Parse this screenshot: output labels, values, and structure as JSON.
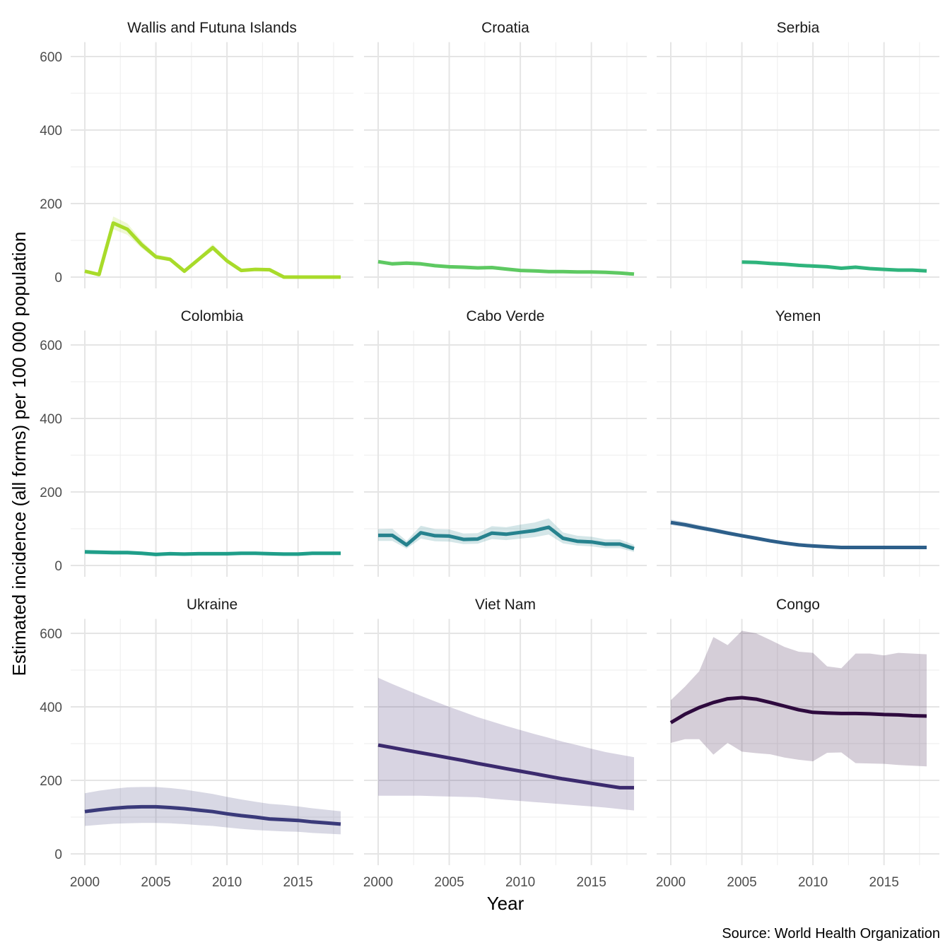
{
  "chart_data": {
    "type": "line",
    "xlabel": "Year",
    "ylabel": "Estimated incidence (all forms) per 100 000 population",
    "caption": "Source: World Health Organization",
    "xlim": [
      2000,
      2018
    ],
    "ylim": [
      0,
      620
    ],
    "x_ticks": [
      "2000",
      "2005",
      "2010",
      "2015"
    ],
    "y_ticks": [
      "0",
      "200",
      "400",
      "600"
    ],
    "grid": true,
    "facets": [
      {
        "name": "Wallis and Futuna Islands",
        "color": "#a8db2a",
        "years": [
          2000,
          2001,
          2002,
          2003,
          2004,
          2005,
          2006,
          2007,
          2008,
          2009,
          2010,
          2011,
          2012,
          2013,
          2014,
          2015,
          2016,
          2017,
          2018
        ],
        "values": [
          16,
          7,
          147,
          130,
          88,
          55,
          48,
          16,
          48,
          80,
          44,
          18,
          21,
          20,
          0,
          0,
          0,
          0,
          0
        ],
        "lo": [
          14,
          6,
          130,
          115,
          78,
          49,
          43,
          14,
          43,
          72,
          39,
          16,
          19,
          18,
          0,
          0,
          0,
          0,
          0
        ],
        "hi": [
          18,
          8,
          165,
          146,
          99,
          62,
          54,
          18,
          54,
          90,
          50,
          20,
          24,
          23,
          0,
          0,
          0,
          0,
          0
        ]
      },
      {
        "name": "Croatia",
        "color": "#5ec962",
        "years": [
          2000,
          2001,
          2002,
          2003,
          2004,
          2005,
          2006,
          2007,
          2008,
          2009,
          2010,
          2011,
          2012,
          2013,
          2014,
          2015,
          2016,
          2017,
          2018
        ],
        "values": [
          42,
          36,
          38,
          36,
          31,
          28,
          27,
          25,
          26,
          22,
          18,
          17,
          15,
          15,
          14,
          14,
          13,
          11,
          8
        ],
        "lo": [
          37,
          32,
          33,
          32,
          27,
          25,
          24,
          22,
          23,
          19,
          16,
          15,
          13,
          13,
          12,
          12,
          11,
          10,
          7
        ],
        "hi": [
          47,
          40,
          43,
          40,
          35,
          31,
          30,
          28,
          29,
          25,
          20,
          19,
          17,
          17,
          16,
          16,
          15,
          12,
          9
        ]
      },
      {
        "name": "Serbia",
        "color": "#2fb47c",
        "years": [
          2005,
          2006,
          2007,
          2008,
          2009,
          2010,
          2011,
          2012,
          2013,
          2014,
          2015,
          2016,
          2017,
          2018
        ],
        "values": [
          41,
          40,
          37,
          35,
          32,
          30,
          28,
          24,
          27,
          23,
          21,
          19,
          19,
          17
        ],
        "lo": [
          37,
          36,
          33,
          31,
          29,
          27,
          25,
          22,
          24,
          21,
          19,
          17,
          17,
          15
        ],
        "hi": [
          45,
          44,
          41,
          39,
          35,
          33,
          31,
          26,
          30,
          25,
          23,
          21,
          21,
          19
        ]
      },
      {
        "name": "Colombia",
        "color": "#1f9e89",
        "years": [
          2000,
          2001,
          2002,
          2003,
          2004,
          2005,
          2006,
          2007,
          2008,
          2009,
          2010,
          2011,
          2012,
          2013,
          2014,
          2015,
          2016,
          2017,
          2018
        ],
        "values": [
          37,
          36,
          35,
          35,
          33,
          30,
          32,
          31,
          32,
          32,
          32,
          33,
          33,
          32,
          31,
          31,
          33,
          33,
          33
        ],
        "lo": [
          31,
          30,
          29,
          29,
          28,
          25,
          27,
          26,
          27,
          27,
          27,
          28,
          28,
          27,
          26,
          26,
          28,
          28,
          28
        ],
        "hi": [
          43,
          42,
          41,
          41,
          38,
          35,
          37,
          36,
          37,
          37,
          37,
          38,
          38,
          37,
          36,
          36,
          38,
          38,
          38
        ]
      },
      {
        "name": "Cabo Verde",
        "color": "#26828e",
        "years": [
          2000,
          2001,
          2002,
          2003,
          2004,
          2005,
          2006,
          2007,
          2008,
          2009,
          2010,
          2011,
          2012,
          2013,
          2014,
          2015,
          2016,
          2017,
          2018
        ],
        "values": [
          82,
          82,
          56,
          89,
          81,
          80,
          71,
          72,
          88,
          85,
          90,
          95,
          104,
          74,
          66,
          64,
          58,
          58,
          46
        ],
        "lo": [
          67,
          67,
          46,
          73,
          66,
          65,
          58,
          59,
          72,
          69,
          73,
          77,
          84,
          60,
          54,
          52,
          47,
          47,
          37
        ],
        "hi": [
          99,
          100,
          67,
          108,
          99,
          98,
          87,
          88,
          107,
          104,
          111,
          117,
          128,
          90,
          81,
          78,
          71,
          71,
          56
        ]
      },
      {
        "name": "Yemen",
        "color": "#2d5f8a",
        "years": [
          2000,
          2001,
          2002,
          2003,
          2004,
          2005,
          2006,
          2007,
          2008,
          2009,
          2010,
          2011,
          2012,
          2013,
          2014,
          2015,
          2016,
          2017,
          2018
        ],
        "values": [
          117,
          111,
          103,
          96,
          88,
          81,
          74,
          67,
          61,
          56,
          53,
          51,
          49,
          49,
          49,
          49,
          49,
          49,
          49
        ],
        "lo": [
          110,
          104,
          97,
          90,
          83,
          76,
          70,
          63,
          57,
          53,
          50,
          48,
          46,
          46,
          46,
          46,
          46,
          46,
          46
        ],
        "hi": [
          125,
          118,
          110,
          102,
          94,
          86,
          79,
          71,
          65,
          60,
          57,
          54,
          52,
          52,
          52,
          52,
          52,
          52,
          52
        ]
      },
      {
        "name": "Ukraine",
        "color": "#3a3a7a",
        "years": [
          2000,
          2001,
          2002,
          2003,
          2004,
          2005,
          2006,
          2007,
          2008,
          2009,
          2010,
          2011,
          2012,
          2013,
          2014,
          2015,
          2016,
          2017,
          2018
        ],
        "values": [
          115,
          120,
          124,
          127,
          128,
          128,
          126,
          123,
          119,
          115,
          109,
          104,
          100,
          95,
          93,
          91,
          87,
          84,
          81
        ],
        "lo": [
          76,
          79,
          82,
          83,
          84,
          84,
          83,
          81,
          78,
          76,
          72,
          68,
          65,
          63,
          61,
          60,
          57,
          55,
          53
        ],
        "hi": [
          165,
          172,
          177,
          181,
          182,
          182,
          179,
          175,
          169,
          163,
          155,
          148,
          142,
          136,
          133,
          129,
          124,
          120,
          116
        ]
      },
      {
        "name": "Viet Nam",
        "color": "#3b2a6e",
        "years": [
          2000,
          2001,
          2002,
          2003,
          2004,
          2005,
          2006,
          2007,
          2008,
          2009,
          2010,
          2011,
          2012,
          2013,
          2014,
          2015,
          2016,
          2017,
          2018
        ],
        "values": [
          296,
          289,
          282,
          275,
          268,
          261,
          254,
          246,
          239,
          232,
          225,
          218,
          211,
          204,
          198,
          192,
          186,
          180,
          180
        ],
        "lo": [
          158,
          158,
          158,
          158,
          157,
          156,
          155,
          154,
          150,
          147,
          144,
          141,
          138,
          135,
          132,
          129,
          126,
          122,
          118
        ],
        "hi": [
          479,
          462,
          446,
          430,
          415,
          400,
          386,
          372,
          360,
          348,
          337,
          326,
          316,
          305,
          296,
          286,
          277,
          270,
          263
        ]
      },
      {
        "name": "Congo",
        "color": "#2e0a3e",
        "years": [
          2000,
          2001,
          2002,
          2003,
          2004,
          2005,
          2006,
          2007,
          2008,
          2009,
          2010,
          2011,
          2012,
          2013,
          2014,
          2015,
          2016,
          2017,
          2018
        ],
        "values": [
          357,
          380,
          398,
          412,
          422,
          425,
          421,
          412,
          402,
          392,
          385,
          383,
          382,
          382,
          381,
          379,
          378,
          376,
          375
        ],
        "lo": [
          302,
          312,
          312,
          270,
          302,
          278,
          274,
          271,
          262,
          256,
          252,
          275,
          276,
          247,
          246,
          245,
          242,
          240,
          238
        ],
        "hi": [
          418,
          455,
          497,
          590,
          568,
          607,
          600,
          582,
          563,
          550,
          547,
          510,
          505,
          545,
          545,
          540,
          547,
          545,
          543
        ]
      }
    ]
  }
}
